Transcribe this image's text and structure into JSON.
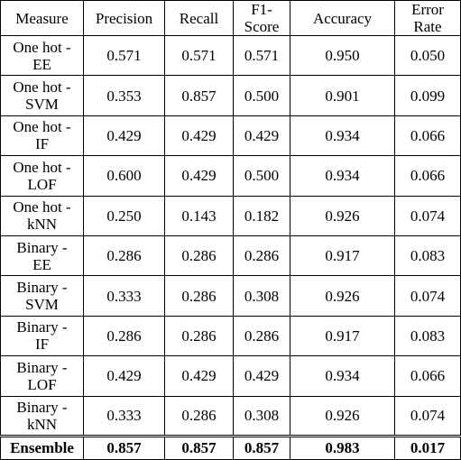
{
  "table": {
    "header": [
      "Measure",
      "Precision",
      "Recall",
      [
        "F1-",
        "Score"
      ],
      "Accuracy",
      [
        "Error",
        "Rate"
      ]
    ],
    "rows": [
      [
        [
          "One hot -",
          "EE"
        ],
        "0.571",
        "0.571",
        "0.571",
        "0.950",
        "0.050"
      ],
      [
        [
          "One hot -",
          "SVM"
        ],
        "0.353",
        "0.857",
        "0.500",
        "0.901",
        "0.099"
      ],
      [
        [
          "One hot -",
          "IF"
        ],
        "0.429",
        "0.429",
        "0.429",
        "0.934",
        "0.066"
      ],
      [
        [
          "One hot -",
          "LOF"
        ],
        "0.600",
        "0.429",
        "0.500",
        "0.934",
        "0.066"
      ],
      [
        [
          "One hot -",
          "kNN"
        ],
        "0.250",
        "0.143",
        "0.182",
        "0.926",
        "0.074"
      ],
      [
        [
          "Binary -",
          "EE"
        ],
        "0.286",
        "0.286",
        "0.286",
        "0.917",
        "0.083"
      ],
      [
        [
          "Binary -",
          "SVM"
        ],
        "0.333",
        "0.286",
        "0.308",
        "0.926",
        "0.074"
      ],
      [
        [
          "Binary -",
          "IF"
        ],
        "0.286",
        "0.286",
        "0.286",
        "0.917",
        "0.083"
      ],
      [
        [
          "Binary -",
          "LOF"
        ],
        "0.429",
        "0.429",
        "0.429",
        "0.934",
        "0.066"
      ],
      [
        [
          "Binary -",
          "kNN"
        ],
        "0.333",
        "0.286",
        "0.308",
        "0.926",
        "0.074"
      ],
      [
        "Ensemble",
        "0.857",
        "0.857",
        "0.857",
        "0.983",
        "0.017"
      ]
    ]
  }
}
